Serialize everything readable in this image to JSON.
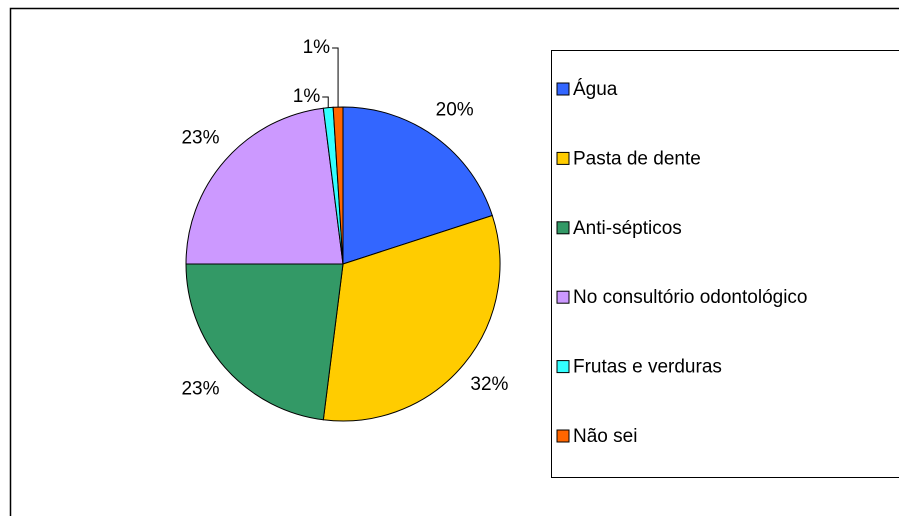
{
  "chart_data": {
    "type": "pie",
    "categories": [
      "Água",
      "Pasta de dente",
      "Anti-sépticos",
      "No consultório odontológico",
      "Frutas e verduras",
      "Não sei"
    ],
    "values": [
      20,
      32,
      23,
      23,
      1,
      1
    ],
    "value_labels": [
      "20%",
      "32%",
      "23%",
      "23%",
      "1%",
      "1%"
    ],
    "colors": [
      "#3366ff",
      "#ffcc00",
      "#339966",
      "#cc99ff",
      "#33ffff",
      "#ff6600"
    ],
    "legend": "right"
  }
}
